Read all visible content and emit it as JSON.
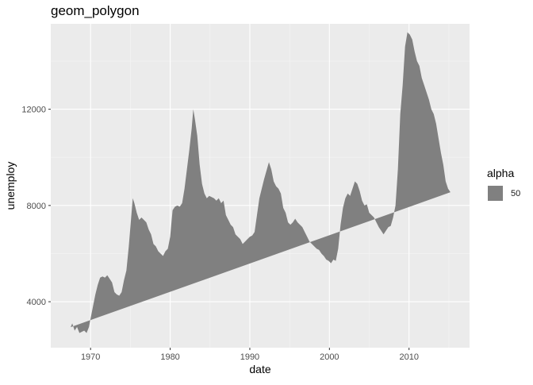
{
  "colors": {
    "panel": "#ebebeb",
    "grid_major": "#ffffff",
    "grid_minor": "#f5f5f5",
    "fill": "#808080",
    "tick_text": "#4d4d4d",
    "axis_title": "#000000"
  },
  "legend": {
    "title": "alpha",
    "label": "50"
  },
  "chart_data": {
    "type": "area",
    "geom": "polygon",
    "title": "geom_polygon",
    "xlabel": "date",
    "ylabel": "unemploy",
    "xlim": [
      1965.0,
      2017.6
    ],
    "ylim": [
      2090,
      15550
    ],
    "x_ticks": [
      1970,
      1980,
      1990,
      2000,
      2010
    ],
    "x_tick_labels": [
      "1970",
      "1980",
      "1990",
      "2000",
      "2010"
    ],
    "y_ticks": [
      4000,
      8000,
      12000
    ],
    "y_tick_labels": [
      "4000",
      "8000",
      "12000"
    ],
    "fill_alpha": 0.5,
    "legend_label": "50",
    "series": [
      {
        "name": "unemploy",
        "x": [
          1967.5,
          1967.7,
          1968.0,
          1968.3,
          1968.6,
          1968.9,
          1969.2,
          1969.5,
          1969.8,
          1970.0,
          1970.3,
          1970.6,
          1970.9,
          1971.2,
          1971.5,
          1971.8,
          1972.1,
          1972.4,
          1972.7,
          1973.0,
          1973.3,
          1973.6,
          1973.9,
          1974.2,
          1974.5,
          1974.8,
          1975.1,
          1975.3,
          1975.5,
          1975.8,
          1976.1,
          1976.4,
          1976.7,
          1977.0,
          1977.3,
          1977.6,
          1977.9,
          1978.2,
          1978.5,
          1978.8,
          1979.1,
          1979.4,
          1979.7,
          1980.0,
          1980.3,
          1980.6,
          1980.9,
          1981.2,
          1981.5,
          1981.8,
          1982.1,
          1982.4,
          1982.7,
          1982.9,
          1983.1,
          1983.4,
          1983.7,
          1984.0,
          1984.3,
          1984.6,
          1984.9,
          1985.2,
          1985.5,
          1985.8,
          1986.1,
          1986.4,
          1986.7,
          1987.0,
          1987.3,
          1987.6,
          1987.9,
          1988.2,
          1988.5,
          1988.8,
          1989.1,
          1989.4,
          1989.7,
          1990.0,
          1990.3,
          1990.6,
          1990.9,
          1991.2,
          1991.5,
          1991.8,
          1992.1,
          1992.4,
          1992.7,
          1993.0,
          1993.3,
          1993.6,
          1993.9,
          1994.2,
          1994.5,
          1994.8,
          1995.1,
          1995.4,
          1995.7,
          1996.0,
          1996.3,
          1996.6,
          1996.9,
          1997.2,
          1997.5,
          1997.8,
          1998.1,
          1998.4,
          1998.7,
          1999.0,
          1999.3,
          1999.6,
          1999.9,
          2000.2,
          2000.5,
          2000.8,
          2001.1,
          2001.4,
          2001.7,
          2002.0,
          2002.3,
          2002.6,
          2002.9,
          2003.2,
          2003.5,
          2003.8,
          2004.1,
          2004.4,
          2004.7,
          2005.0,
          2005.3,
          2005.6,
          2005.9,
          2006.2,
          2006.5,
          2006.8,
          2007.1,
          2007.4,
          2007.7,
          2008.0,
          2008.3,
          2008.6,
          2008.9,
          2009.2,
          2009.5,
          2009.8,
          2010.1,
          2010.4,
          2010.7,
          2011.0,
          2011.3,
          2011.6,
          2011.9,
          2012.2,
          2012.5,
          2012.8,
          2013.1,
          2013.4,
          2013.7,
          2014.0,
          2014.3,
          2014.6,
          2014.9,
          2015.2
        ],
        "y": [
          2944,
          3100,
          2800,
          2950,
          2700,
          2750,
          2800,
          2700,
          2950,
          3300,
          3800,
          4300,
          4700,
          5000,
          5050,
          5000,
          5100,
          4950,
          4800,
          4400,
          4300,
          4250,
          4400,
          4900,
          5300,
          6300,
          7500,
          8300,
          8100,
          7700,
          7400,
          7500,
          7400,
          7300,
          7000,
          6800,
          6400,
          6300,
          6100,
          6000,
          5900,
          6100,
          6200,
          6700,
          7800,
          7950,
          8000,
          7950,
          8100,
          8700,
          9500,
          10300,
          11200,
          12000,
          11600,
          10900,
          9700,
          8900,
          8500,
          8300,
          8400,
          8350,
          8300,
          8200,
          8300,
          8100,
          8200,
          7600,
          7400,
          7200,
          7100,
          6800,
          6700,
          6600,
          6400,
          6500,
          6600,
          6700,
          6750,
          6900,
          7600,
          8300,
          8700,
          9100,
          9450,
          9800,
          9500,
          9000,
          8800,
          8700,
          8500,
          7900,
          7700,
          7300,
          7200,
          7300,
          7450,
          7300,
          7200,
          7100,
          6900,
          6700,
          6500,
          6400,
          6300,
          6200,
          6150,
          6000,
          5900,
          5750,
          5700,
          5600,
          5750,
          5700,
          6200,
          7200,
          7900,
          8300,
          8500,
          8400,
          8700,
          9000,
          8900,
          8600,
          8200,
          8000,
          8050,
          7700,
          7600,
          7500,
          7300,
          7100,
          6950,
          6800,
          6950,
          7100,
          7150,
          7500,
          8000,
          9500,
          11800,
          13000,
          14600,
          15200,
          15100,
          14900,
          14400,
          14000,
          13800,
          13300,
          13000,
          12700,
          12400,
          12000,
          11800,
          11400,
          10800,
          10200,
          9700,
          9000,
          8700,
          8550
        ]
      }
    ]
  }
}
